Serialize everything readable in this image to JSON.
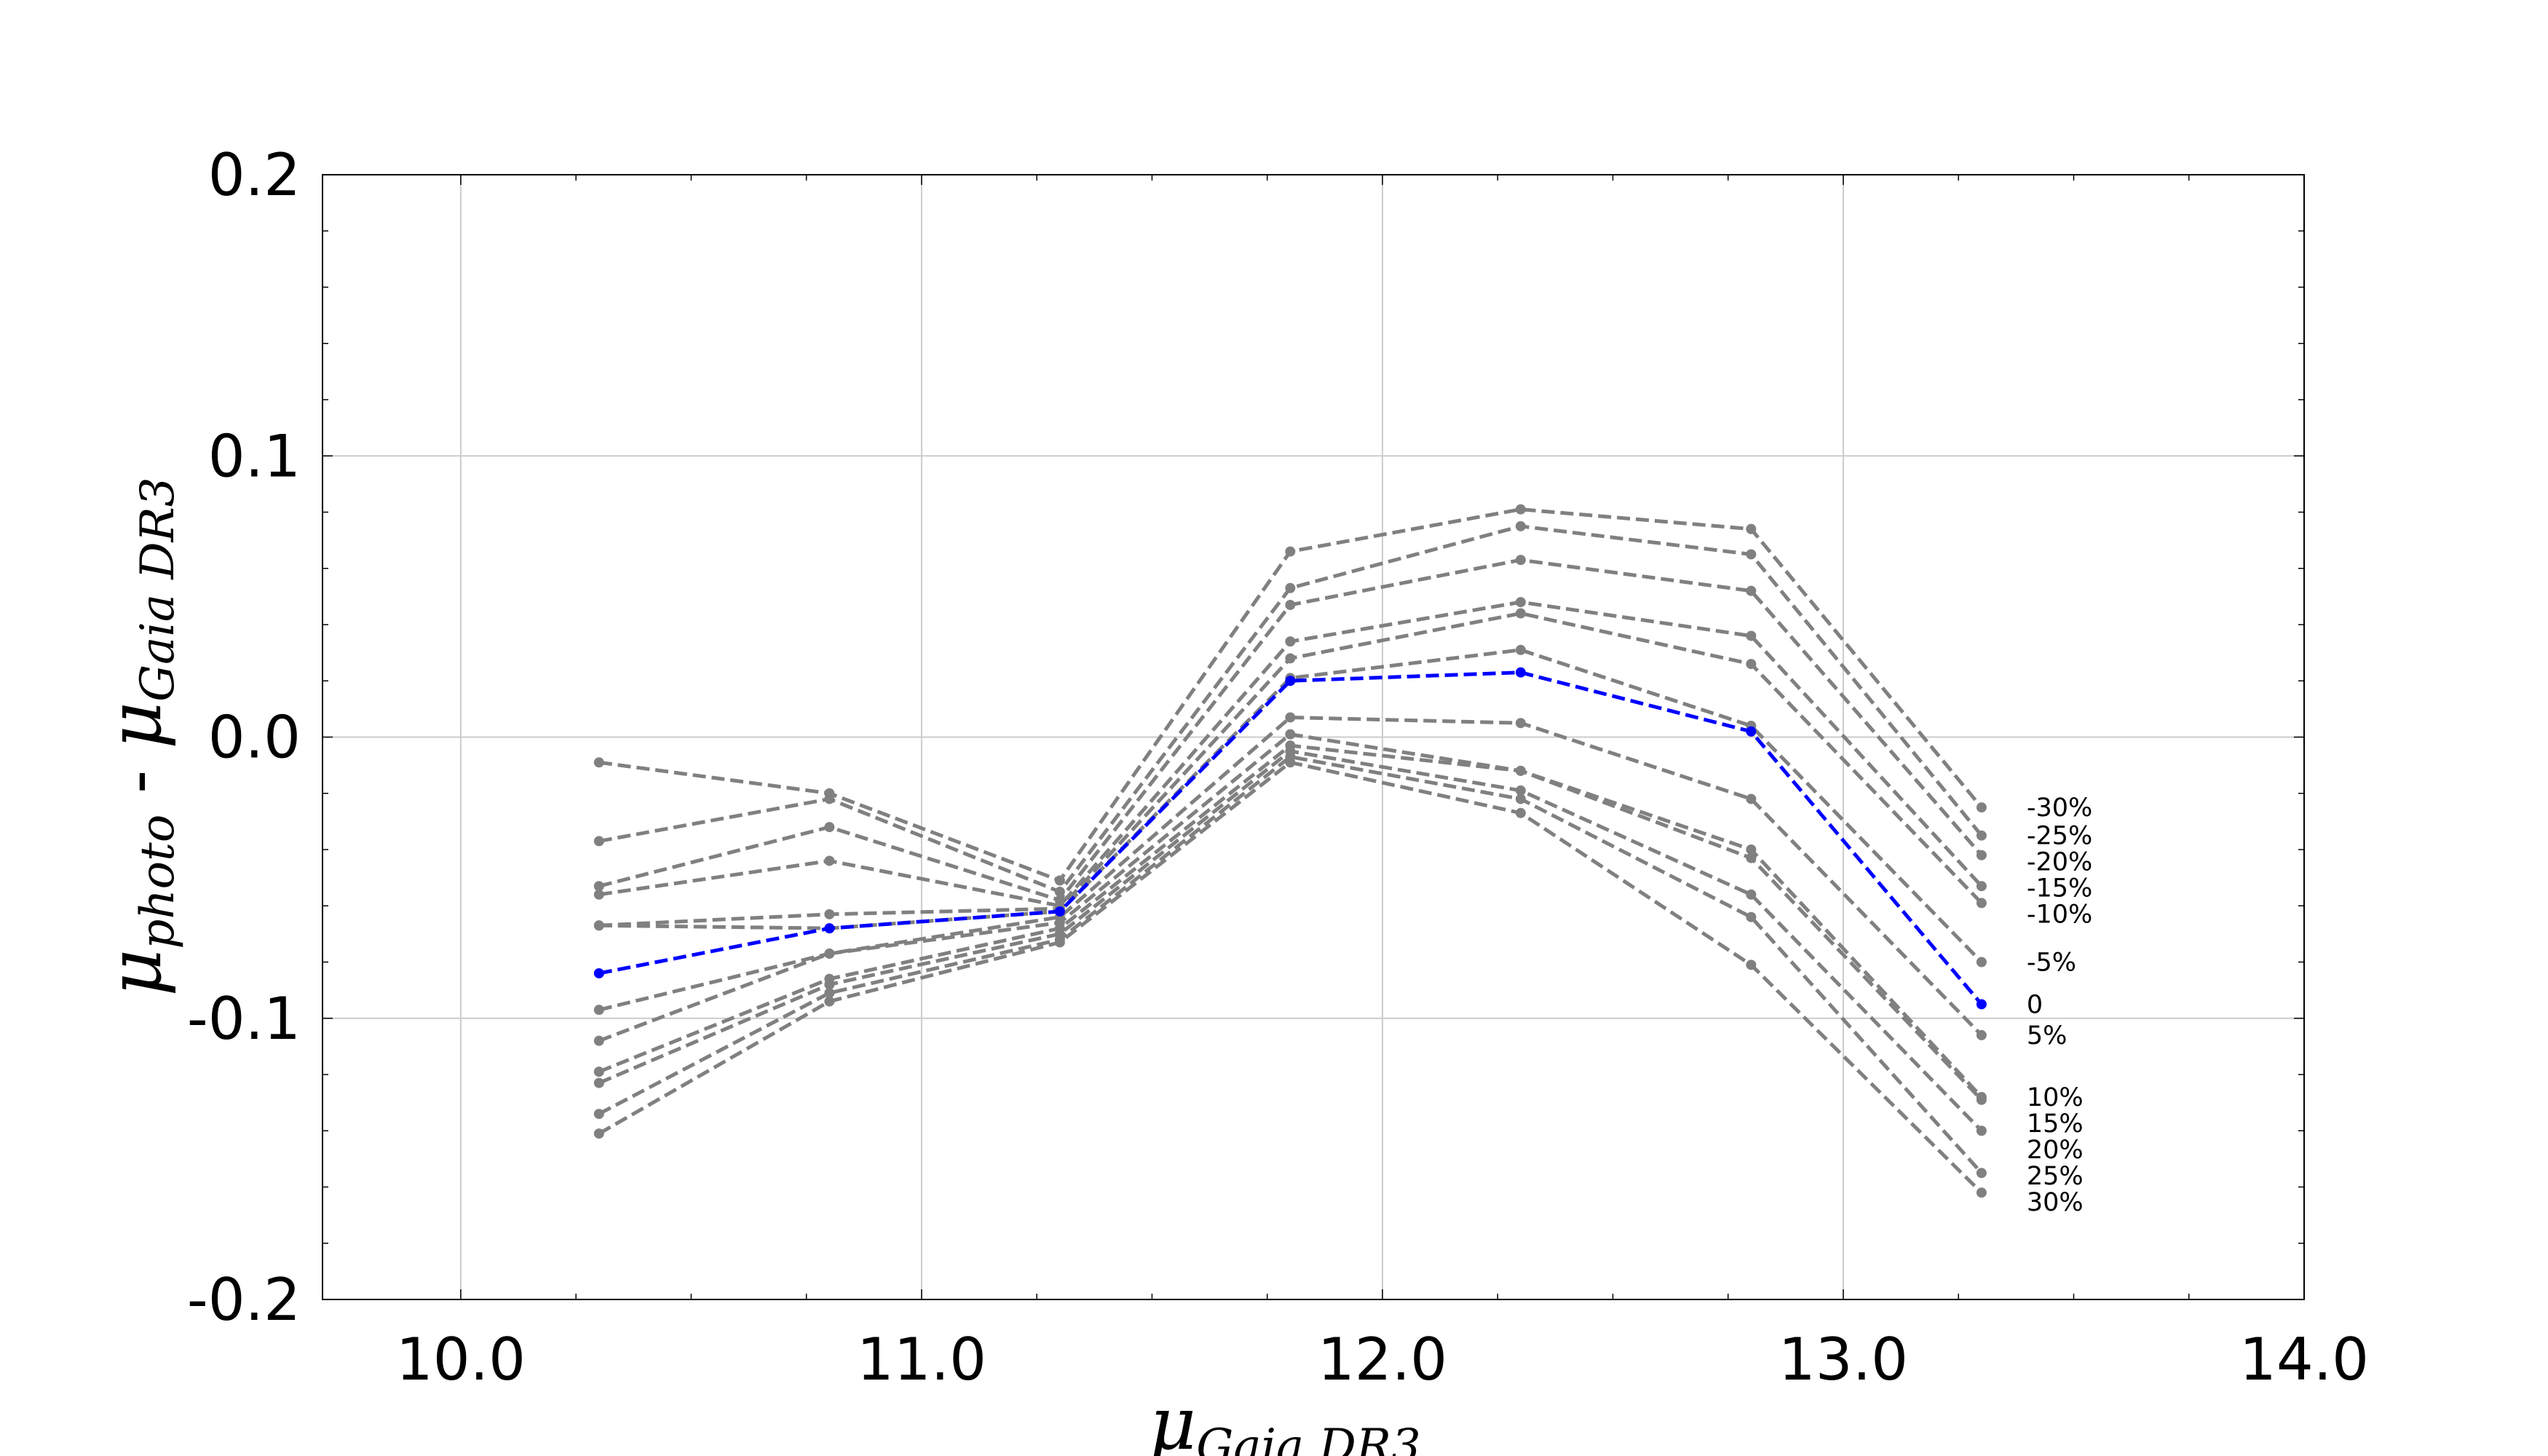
{
  "chart_data": {
    "type": "line",
    "title": "",
    "xlabel": {
      "main": "μ",
      "sub": "Gaia DR3"
    },
    "ylabel": {
      "part1_main": "μ",
      "part1_sub": "photo",
      "separator": " - ",
      "part2_main": "μ",
      "part2_sub": "Gaia DR3"
    },
    "xlim": [
      9.7,
      14.0
    ],
    "ylim": [
      -0.2,
      0.2
    ],
    "xticks": [
      10.0,
      11.0,
      12.0,
      13.0,
      14.0
    ],
    "xtick_labels": [
      "10.0",
      "11.0",
      "12.0",
      "13.0",
      "14.0"
    ],
    "yticks": [
      -0.2,
      -0.1,
      0.0,
      0.1,
      0.2
    ],
    "ytick_labels": [
      "-0.2",
      "-0.1",
      "0.0",
      "0.1",
      "0.2"
    ],
    "grid": true,
    "x": [
      10.3,
      10.8,
      11.3,
      11.8,
      12.3,
      12.8,
      13.3
    ],
    "series": [
      {
        "name": "-30%",
        "color": "#808080",
        "values": [
          -0.009,
          -0.02,
          -0.051,
          0.066,
          0.081,
          0.074,
          -0.025
        ]
      },
      {
        "name": "-25%",
        "color": "#808080",
        "values": [
          -0.037,
          -0.022,
          -0.055,
          0.053,
          0.075,
          0.065,
          -0.035
        ]
      },
      {
        "name": "-20%",
        "color": "#808080",
        "values": [
          -0.053,
          -0.032,
          -0.058,
          0.047,
          0.063,
          0.052,
          -0.042
        ]
      },
      {
        "name": "-15%",
        "color": "#808080",
        "values": [
          -0.056,
          -0.044,
          -0.06,
          0.034,
          0.048,
          0.036,
          -0.053
        ]
      },
      {
        "name": "-10%",
        "color": "#808080",
        "values": [
          -0.067,
          -0.063,
          -0.061,
          0.028,
          0.044,
          0.026,
          -0.059
        ]
      },
      {
        "name": "-5%",
        "color": "#808080",
        "values": [
          -0.067,
          -0.068,
          -0.062,
          0.021,
          0.031,
          0.004,
          -0.08
        ]
      },
      {
        "name": "0",
        "color": "#0000ff",
        "values": [
          -0.084,
          -0.068,
          -0.062,
          0.02,
          0.023,
          0.002,
          -0.095
        ]
      },
      {
        "name": "5%",
        "color": "#808080",
        "values": [
          -0.097,
          -0.077,
          -0.064,
          0.007,
          0.005,
          -0.022,
          -0.106
        ]
      },
      {
        "name": "10%",
        "color": "#808080",
        "values": [
          -0.108,
          -0.077,
          -0.066,
          0.001,
          -0.012,
          -0.04,
          -0.128
        ]
      },
      {
        "name": "15%",
        "color": "#808080",
        "values": [
          -0.119,
          -0.086,
          -0.068,
          -0.003,
          -0.012,
          -0.043,
          -0.129
        ]
      },
      {
        "name": "20%",
        "color": "#808080",
        "values": [
          -0.123,
          -0.088,
          -0.07,
          -0.005,
          -0.019,
          -0.056,
          -0.14
        ]
      },
      {
        "name": "25%",
        "color": "#808080",
        "values": [
          -0.134,
          -0.091,
          -0.072,
          -0.007,
          -0.022,
          -0.064,
          -0.155
        ]
      },
      {
        "name": "30%",
        "color": "#808080",
        "values": [
          -0.141,
          -0.094,
          -0.073,
          -0.009,
          -0.027,
          -0.081,
          -0.162
        ]
      }
    ]
  }
}
